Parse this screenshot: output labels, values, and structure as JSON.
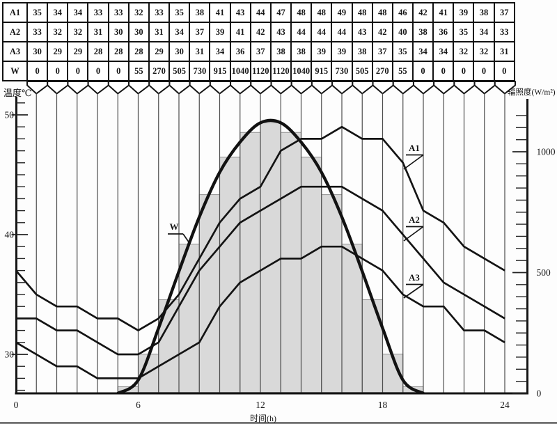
{
  "axes": {
    "left_title": "温度℃",
    "right_title": "辐照度(W/m²)",
    "x_title": "时间(h)"
  },
  "chart_data": {
    "type": "line+bar",
    "description": "Hourly ambient temperatures A1/A2/A3 (left axis, °C, polylines) and solar irradiance W (right axis, W/m², smooth bell curve with shaded hourly bars). Table values feed the chart; column i is plotted at hour i+1, curves wrap from hour 0 using the last value.",
    "hours": [
      0,
      1,
      2,
      3,
      4,
      5,
      6,
      7,
      8,
      9,
      10,
      11,
      12,
      13,
      14,
      15,
      16,
      17,
      18,
      19,
      20,
      21,
      22,
      23
    ],
    "series": [
      {
        "name": "A1",
        "role": "line",
        "axis": "left",
        "values": [
          35,
          34,
          34,
          33,
          33,
          32,
          33,
          35,
          38,
          41,
          43,
          44,
          47,
          48,
          48,
          49,
          48,
          48,
          46,
          42,
          41,
          39,
          38,
          37
        ]
      },
      {
        "name": "A2",
        "role": "line",
        "axis": "left",
        "values": [
          33,
          32,
          32,
          31,
          30,
          30,
          31,
          34,
          37,
          39,
          41,
          42,
          43,
          44,
          44,
          44,
          43,
          42,
          40,
          38,
          36,
          35,
          34,
          33
        ]
      },
      {
        "name": "A3",
        "role": "line",
        "axis": "left",
        "values": [
          30,
          29,
          29,
          28,
          28,
          28,
          29,
          30,
          31,
          34,
          36,
          37,
          38,
          38,
          39,
          39,
          38,
          37,
          35,
          34,
          34,
          32,
          32,
          31
        ]
      },
      {
        "name": "W",
        "role": "bar+curve",
        "axis": "right",
        "values": [
          0,
          0,
          0,
          0,
          0,
          55,
          270,
          505,
          730,
          915,
          1040,
          1120,
          1120,
          1040,
          915,
          730,
          505,
          270,
          55,
          0,
          0,
          0,
          0,
          0
        ]
      }
    ],
    "left_axis": {
      "title": "温度℃",
      "unit": "°C",
      "major_ticks": [
        30,
        40,
        50
      ],
      "minor_step": 1,
      "approx_range": [
        27,
        51.5
      ]
    },
    "right_axis": {
      "title": "辐照度(W/m²)",
      "unit": "W/m²",
      "major_ticks": [
        0,
        500,
        1000
      ],
      "minor_step": 50,
      "approx_range": [
        0,
        1240
      ]
    },
    "x_axis": {
      "title": "时间(h)",
      "ticks": [
        0,
        6,
        12,
        18,
        24
      ],
      "range": [
        0,
        24
      ]
    },
    "grid": "vertical line per hour, fed by funnel pointers from each table column",
    "curve_labels": [
      "W",
      "A1",
      "A2",
      "A3"
    ],
    "colors": {
      "ink": "#141414",
      "grid": "#4d4d4d",
      "bar_fill": "#d9d9d9",
      "bar_edge": "#8e8e8e"
    }
  }
}
